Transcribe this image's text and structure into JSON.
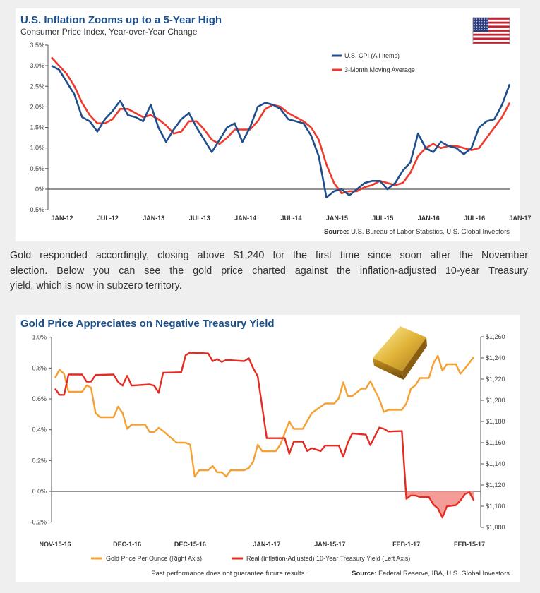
{
  "paragraph": {
    "lines": [
      "Gold responded accordingly, closing above $1,240 for the first time since soon after the November",
      "election. Below you can see the gold price charted against the inflation-adjusted 10-year Treasury",
      "yield, which is now in subzero territory."
    ]
  },
  "colors": {
    "title": "#1b4f8b",
    "cpi": "#1f4e8c",
    "moving_average": "#ee3a2c",
    "gold": "#f5a032",
    "treasury": "#e42b22",
    "negative_fill": "#f28b85"
  },
  "icons": {
    "chart1": "us-flag-icon",
    "chart2": "gold-bar-icon"
  },
  "chart_data": [
    {
      "type": "line",
      "title": "U.S. Inflation Zooms up to a 5-Year High",
      "subtitle": "Consumer Price Index, Year-over-Year Change",
      "ylim": [
        -0.5,
        3.5
      ],
      "y_ticks": [
        "3.5%",
        "3.0%",
        "2.5%",
        "2.0%",
        "1.5%",
        "1.0%",
        "0.5%",
        "0%",
        "-0.5%"
      ],
      "y_tick_values": [
        3.5,
        3.0,
        2.5,
        2.0,
        1.5,
        1.0,
        0.5,
        0,
        -0.5
      ],
      "x_ticks": [
        "JAN-12",
        "JUL-12",
        "JAN-13",
        "JUL-13",
        "JAN-14",
        "JUL-14",
        "JAN-15",
        "JUL-15",
        "JAN-16",
        "JUL-16",
        "JAN-17"
      ],
      "x_range": [
        "JAN-12",
        "JAN-17"
      ],
      "frequency": "monthly",
      "legend_position": "top-right",
      "source_label": "Source:",
      "source_text": "U.S. Bureau of Labor Statistics, U.S. Global Investors",
      "series": [
        {
          "name": "U.S. CPI (All Items)",
          "values": [
            3.0,
            2.9,
            2.6,
            2.3,
            1.75,
            1.65,
            1.4,
            1.7,
            1.9,
            2.15,
            1.8,
            1.75,
            1.65,
            2.05,
            1.5,
            1.15,
            1.45,
            1.7,
            1.85,
            1.5,
            1.2,
            0.9,
            1.2,
            1.5,
            1.6,
            1.15,
            1.5,
            2.0,
            2.1,
            2.05,
            1.95,
            1.7,
            1.65,
            1.6,
            1.3,
            0.8,
            -0.2,
            -0.05,
            0.0,
            -0.15,
            0.0,
            0.15,
            0.2,
            0.2,
            0.0,
            0.15,
            0.45,
            0.65,
            1.35,
            1.0,
            0.9,
            1.15,
            1.05,
            1.0,
            0.85,
            1.0,
            1.5,
            1.65,
            1.7,
            2.05,
            2.55
          ]
        },
        {
          "name": "3-Month Moving Average",
          "values": [
            3.2,
            3.0,
            2.8,
            2.5,
            2.1,
            1.8,
            1.6,
            1.6,
            1.7,
            1.95,
            1.95,
            1.85,
            1.75,
            1.8,
            1.7,
            1.55,
            1.35,
            1.4,
            1.65,
            1.65,
            1.45,
            1.2,
            1.1,
            1.25,
            1.45,
            1.45,
            1.45,
            1.65,
            1.95,
            2.05,
            2.0,
            1.85,
            1.75,
            1.65,
            1.5,
            1.2,
            0.6,
            0.15,
            -0.1,
            -0.05,
            -0.05,
            0.05,
            0.1,
            0.2,
            0.15,
            0.1,
            0.15,
            0.4,
            0.8,
            1.0,
            1.1,
            1.0,
            1.05,
            1.05,
            1.0,
            0.95,
            1.0,
            1.25,
            1.5,
            1.75,
            2.1
          ]
        }
      ]
    },
    {
      "type": "line",
      "title": "Gold Price Appreciates on Negative Treasury Yield",
      "y_left_lim": [
        -0.2,
        1.0
      ],
      "y_left_ticks": [
        "1.0%",
        "0.8%",
        "0.6%",
        "0.4%",
        "0.2%",
        "0.0%",
        "-0.2%"
      ],
      "y_left_tick_values": [
        1.0,
        0.8,
        0.6,
        0.4,
        0.2,
        0.0,
        -0.2
      ],
      "y_right_lim": [
        1080,
        1260
      ],
      "y_right_ticks": [
        "$1,260",
        "$1,240",
        "$1,220",
        "$1,200",
        "$1,180",
        "$1,160",
        "$1,140",
        "$1,120",
        "$1,100",
        "$1,080"
      ],
      "y_right_tick_values": [
        1260,
        1240,
        1220,
        1200,
        1180,
        1160,
        1140,
        1120,
        1100,
        1080
      ],
      "x_ticks": [
        "NOV-15-16",
        "DEC-1-16",
        "DEC-15-16",
        "JAN-1-17",
        "JAN-15-17",
        "FEB-1-17",
        "FEB-15-17"
      ],
      "x_tick_dates": [
        "2016-11-15",
        "2016-12-01",
        "2016-12-15",
        "2017-01-01",
        "2017-01-15",
        "2017-02-01",
        "2017-02-15"
      ],
      "legend_position": "bottom",
      "disclaimer": "Past performance does not guarantee future results.",
      "source_label": "Source:",
      "source_text": "Federal Reserve, IBA, U.S. Global Investors",
      "series": [
        {
          "name": "Gold Price Per Ounce (Right Axis)",
          "axis": "right",
          "points": [
            [
              "2016-11-15",
              1221
            ],
            [
              "2016-11-16",
              1229
            ],
            [
              "2016-11-17",
              1225
            ],
            [
              "2016-11-18",
              1208
            ],
            [
              "2016-11-21",
              1208
            ],
            [
              "2016-11-22",
              1214
            ],
            [
              "2016-11-23",
              1212
            ],
            [
              "2016-11-24",
              1188
            ],
            [
              "2016-11-25",
              1184
            ],
            [
              "2016-11-28",
              1184
            ],
            [
              "2016-11-29",
              1194
            ],
            [
              "2016-11-30",
              1188
            ],
            [
              "2016-12-01",
              1173
            ],
            [
              "2016-12-02",
              1177
            ],
            [
              "2016-12-05",
              1177
            ],
            [
              "2016-12-06",
              1170
            ],
            [
              "2016-12-07",
              1170
            ],
            [
              "2016-12-08",
              1174
            ],
            [
              "2016-12-09",
              1171
            ],
            [
              "2016-12-12",
              1160
            ],
            [
              "2016-12-14",
              1160
            ],
            [
              "2016-12-15",
              1158
            ],
            [
              "2016-12-16",
              1128
            ],
            [
              "2016-12-17",
              1134
            ],
            [
              "2016-12-19",
              1134
            ],
            [
              "2016-12-20",
              1138
            ],
            [
              "2016-12-21",
              1132
            ],
            [
              "2016-12-22",
              1132
            ],
            [
              "2016-12-23",
              1128
            ],
            [
              "2016-12-24",
              1134
            ],
            [
              "2016-12-27",
              1134
            ],
            [
              "2016-12-28",
              1136
            ],
            [
              "2016-12-29",
              1142
            ],
            [
              "2016-12-30",
              1158
            ],
            [
              "2016-12-31",
              1152
            ],
            [
              "2017-01-03",
              1152
            ],
            [
              "2017-01-04",
              1158
            ],
            [
              "2017-01-06",
              1180
            ],
            [
              "2017-01-07",
              1173
            ],
            [
              "2017-01-09",
              1173
            ],
            [
              "2017-01-11",
              1188
            ],
            [
              "2017-01-14",
              1197
            ],
            [
              "2017-01-16",
              1197
            ],
            [
              "2017-01-17",
              1202
            ],
            [
              "2017-01-18",
              1217
            ],
            [
              "2017-01-19",
              1204
            ],
            [
              "2017-01-20",
              1204
            ],
            [
              "2017-01-22",
              1211
            ],
            [
              "2017-01-23",
              1211
            ],
            [
              "2017-01-24",
              1218
            ],
            [
              "2017-01-26",
              1201
            ],
            [
              "2017-01-27",
              1189
            ],
            [
              "2017-01-28",
              1191
            ],
            [
              "2017-01-31",
              1191
            ],
            [
              "2017-02-01",
              1197
            ],
            [
              "2017-02-02",
              1211
            ],
            [
              "2017-02-03",
              1214
            ],
            [
              "2017-02-04",
              1221
            ],
            [
              "2017-02-06",
              1221
            ],
            [
              "2017-02-07",
              1235
            ],
            [
              "2017-02-08",
              1242
            ],
            [
              "2017-02-09",
              1228
            ],
            [
              "2017-02-10",
              1234
            ],
            [
              "2017-02-12",
              1234
            ],
            [
              "2017-02-13",
              1225
            ],
            [
              "2017-02-14",
              1230
            ],
            [
              "2017-02-16",
              1241
            ]
          ]
        },
        {
          "name": "Real (Inflation-Adjusted) 10-Year Treasury Yield (Left Axis)",
          "axis": "left",
          "points": [
            [
              "2016-11-15",
              0.667
            ],
            [
              "2016-11-16",
              0.626
            ],
            [
              "2016-11-17",
              0.626
            ],
            [
              "2016-11-18",
              0.758
            ],
            [
              "2016-11-21",
              0.758
            ],
            [
              "2016-11-22",
              0.712
            ],
            [
              "2016-11-23",
              0.712
            ],
            [
              "2016-11-24",
              0.755
            ],
            [
              "2016-11-28",
              0.758
            ],
            [
              "2016-11-29",
              0.71
            ],
            [
              "2016-11-30",
              0.686
            ],
            [
              "2016-12-01",
              0.75
            ],
            [
              "2016-12-02",
              0.686
            ],
            [
              "2016-12-06",
              0.694
            ],
            [
              "2016-12-07",
              0.686
            ],
            [
              "2016-12-08",
              0.64
            ],
            [
              "2016-12-09",
              0.77
            ],
            [
              "2016-12-13",
              0.773
            ],
            [
              "2016-12-14",
              0.883
            ],
            [
              "2016-12-15",
              0.9
            ],
            [
              "2016-12-19",
              0.895
            ],
            [
              "2016-12-20",
              0.845
            ],
            [
              "2016-12-21",
              0.858
            ],
            [
              "2016-12-22",
              0.84
            ],
            [
              "2016-12-23",
              0.853
            ],
            [
              "2016-12-27",
              0.845
            ],
            [
              "2016-12-28",
              0.864
            ],
            [
              "2016-12-29",
              0.8
            ],
            [
              "2016-12-30",
              0.747
            ],
            [
              "2017-01-01",
              0.345
            ],
            [
              "2017-01-05",
              0.345
            ],
            [
              "2017-01-06",
              0.244
            ],
            [
              "2017-01-07",
              0.323
            ],
            [
              "2017-01-09",
              0.323
            ],
            [
              "2017-01-10",
              0.262
            ],
            [
              "2017-01-11",
              0.28
            ],
            [
              "2017-01-13",
              0.262
            ],
            [
              "2017-01-14",
              0.297
            ],
            [
              "2017-01-17",
              0.297
            ],
            [
              "2017-01-18",
              0.224
            ],
            [
              "2017-01-19",
              0.315
            ],
            [
              "2017-01-20",
              0.376
            ],
            [
              "2017-01-23",
              0.368
            ],
            [
              "2017-01-24",
              0.3
            ],
            [
              "2017-01-26",
              0.414
            ],
            [
              "2017-01-27",
              0.406
            ],
            [
              "2017-01-28",
              0.388
            ],
            [
              "2017-01-31",
              0.391
            ],
            [
              "2017-02-01",
              -0.048
            ],
            [
              "2017-02-02",
              -0.026
            ],
            [
              "2017-02-03",
              -0.027
            ],
            [
              "2017-02-04",
              -0.036
            ],
            [
              "2017-02-06",
              -0.036
            ],
            [
              "2017-02-07",
              -0.086
            ],
            [
              "2017-02-08",
              -0.11
            ],
            [
              "2017-02-09",
              -0.17
            ],
            [
              "2017-02-10",
              -0.097
            ],
            [
              "2017-02-12",
              -0.09
            ],
            [
              "2017-02-13",
              -0.06
            ],
            [
              "2017-02-14",
              -0.018
            ],
            [
              "2017-02-15",
              -0.006
            ],
            [
              "2017-02-16",
              -0.06
            ]
          ]
        }
      ]
    }
  ]
}
